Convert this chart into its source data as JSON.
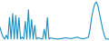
{
  "line_color": "#1a8fc1",
  "line_width": 0.8,
  "background_color": "#ffffff",
  "values": [
    35,
    20,
    10,
    5,
    15,
    5,
    60,
    5,
    70,
    5,
    65,
    5,
    60,
    5,
    10,
    5,
    50,
    5,
    80,
    5,
    55,
    5,
    40,
    5,
    8,
    7,
    6,
    5,
    30,
    5,
    60,
    5,
    8,
    7,
    6,
    6,
    5,
    5,
    6,
    6,
    7,
    8,
    8,
    7,
    7,
    6,
    7,
    8,
    9,
    10,
    8,
    7,
    6,
    6,
    7,
    8,
    10,
    30,
    60,
    80,
    95,
    100,
    90,
    70,
    50,
    30,
    15,
    5,
    5,
    5
  ]
}
